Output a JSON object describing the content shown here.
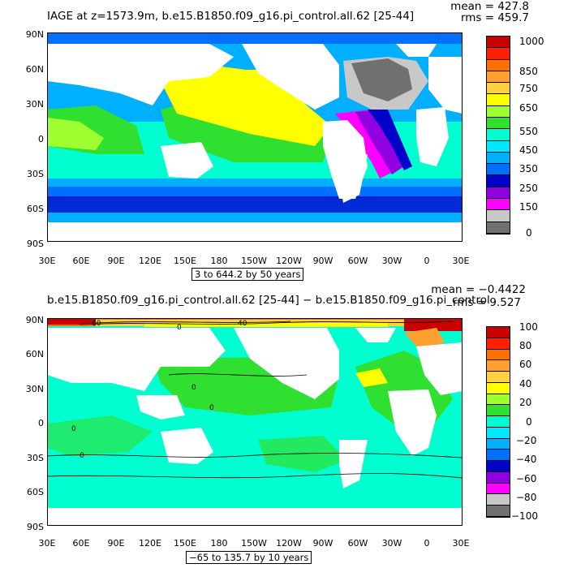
{
  "panel1": {
    "title": "IAGE at z=1573.9m, b.e15.B1850.f09_g16.pi_control.all.62 [25-44]",
    "mean_label": "mean = 427.8",
    "rms_label": "rms = 459.7",
    "range_label": "3 to 644.2 by 50 years",
    "colorbar_labels": [
      "1000",
      "850",
      "750",
      "650",
      "550",
      "450",
      "350",
      "250",
      "150",
      "0"
    ],
    "colorbar_colors": [
      "#c80000",
      "#ff2000",
      "#ff7000",
      "#ffa030",
      "#ffd040",
      "#ffff00",
      "#a0ff30",
      "#30e030",
      "#00ffd0",
      "#00e8ff",
      "#00b0ff",
      "#0070ff",
      "#0000c8",
      "#9000e0",
      "#ff00ff",
      "#c8c8c8",
      "#707070"
    ]
  },
  "panel2": {
    "title": "b.e15.B1850.f09_g16.pi_control.all.62 [25-44] − b.e15.B1850.f09_g16.pi_control",
    "mean_label": "mean = −0.4422",
    "rms_label": "rms = 9.527",
    "range_label": "−65 to 135.7 by 10 years",
    "contour_labels": [
      "60",
      "0",
      "40",
      "0",
      "0",
      "0",
      "0"
    ],
    "colorbar_labels": [
      "100",
      "80",
      "60",
      "40",
      "20",
      "0",
      "−20",
      "−40",
      "−60",
      "−80",
      "−100"
    ],
    "colorbar_colors": [
      "#c80000",
      "#ff2000",
      "#ff7000",
      "#ffa030",
      "#ffd040",
      "#ffff00",
      "#a0ff30",
      "#30e030",
      "#00ffd0",
      "#00e8ff",
      "#00b0ff",
      "#0070ff",
      "#0000c8",
      "#9000e0",
      "#ff00ff",
      "#c8c8c8",
      "#707070"
    ]
  },
  "axes": {
    "lat_labels": [
      "90N",
      "60N",
      "30N",
      "0",
      "30S",
      "60S",
      "90S"
    ],
    "lon_labels": [
      "30E",
      "60E",
      "90E",
      "120E",
      "150E",
      "180",
      "150W",
      "120W",
      "90W",
      "60W",
      "30W",
      "0",
      "30E"
    ]
  },
  "colors": {
    "land": "#ffffff",
    "deep_yellow": "#ffff00",
    "green": "#30e030",
    "lime": "#a0ff30",
    "cyan": "#00ffd0",
    "sky": "#00e8ff",
    "blue": "#00b0ff",
    "mid_blue": "#0070ff",
    "navy": "#0000c8",
    "purple": "#9000e0",
    "magenta": "#ff00ff",
    "gray": "#c8c8c8",
    "dark_gray": "#707070",
    "red": "#ff2000",
    "dark_red": "#c80000",
    "orange": "#ff7000"
  }
}
